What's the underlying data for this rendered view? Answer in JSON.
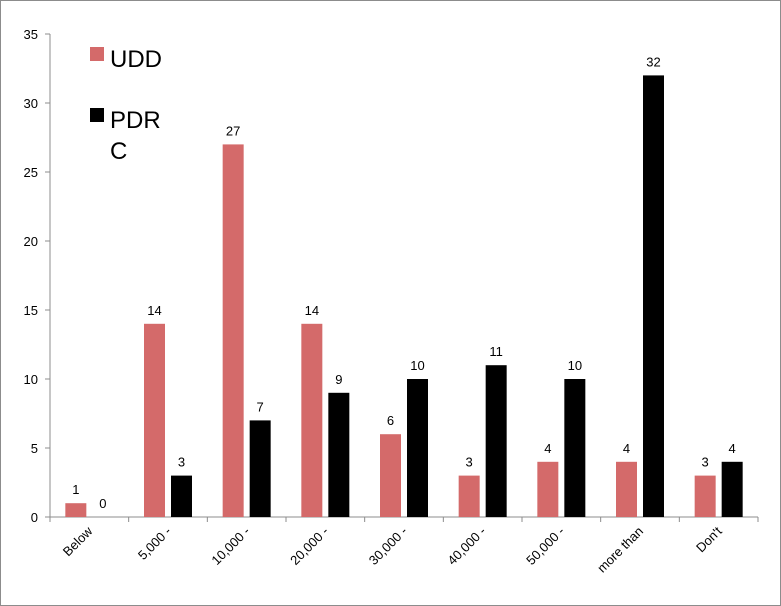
{
  "chart_data": {
    "type": "bar",
    "categories": [
      "Below",
      "5,000 -",
      "10,000 -",
      "20,000 -",
      "30,000 -",
      "40,000 -",
      "50,000 -",
      "more than",
      "Don't"
    ],
    "series": [
      {
        "name": "UDD",
        "color": "#d46a6a",
        "values": [
          1,
          14,
          27,
          14,
          6,
          3,
          4,
          4,
          3
        ]
      },
      {
        "name": "PDRC",
        "color": "#000000",
        "values": [
          0,
          3,
          7,
          9,
          10,
          11,
          10,
          32,
          4
        ]
      }
    ],
    "legend": {
      "placement": "top-left",
      "items": [
        {
          "lines": [
            "UDD"
          ],
          "color": "#d46a6a"
        },
        {
          "lines": [
            "PDR",
            "C"
          ],
          "color": "#000000"
        }
      ]
    },
    "ylim": [
      0,
      35
    ],
    "yticks": [
      0,
      5,
      10,
      15,
      20,
      25,
      30,
      35
    ],
    "grid": false,
    "data_labels": true
  }
}
